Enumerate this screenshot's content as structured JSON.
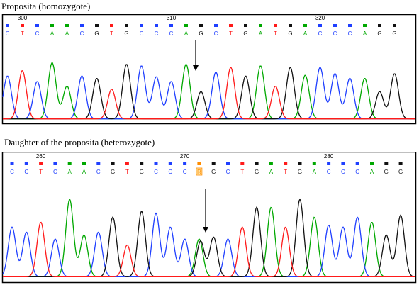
{
  "colors": {
    "A": "#00a800",
    "C": "#1f3fff",
    "G": "#111111",
    "T": "#ff1a1a",
    "R": "#ff8c00",
    "frame": "#000000",
    "arrow": "#000000"
  },
  "panels": [
    {
      "id": "top",
      "label": "Proposita (homozygote)",
      "bases": [
        "C",
        "T",
        "C",
        "A",
        "A",
        "C",
        "G",
        "T",
        "G",
        "C",
        "C",
        "C",
        "A",
        "G",
        "C",
        "T",
        "G",
        "A",
        "T",
        "G",
        "A",
        "C",
        "C",
        "C",
        "A",
        "G",
        "G"
      ],
      "position_labels": [
        {
          "text": "300",
          "base_index": 1
        },
        {
          "text": "310",
          "base_index": 11
        },
        {
          "text": "320",
          "base_index": 21
        }
      ],
      "variant_index": 12,
      "peaks": [
        {
          "base": "C",
          "height": 0.55
        },
        {
          "base": "T",
          "height": 0.62
        },
        {
          "base": "C",
          "height": 0.48
        },
        {
          "base": "A",
          "height": 0.72
        },
        {
          "base": "A",
          "height": 0.42
        },
        {
          "base": "C",
          "height": 0.55
        },
        {
          "base": "G",
          "height": 0.52
        },
        {
          "base": "T",
          "height": 0.38
        },
        {
          "base": "G",
          "height": 0.7
        },
        {
          "base": "C",
          "height": 0.68
        },
        {
          "base": "C",
          "height": 0.54
        },
        {
          "base": "C",
          "height": 0.48
        },
        {
          "base": "A",
          "height": 0.7
        },
        {
          "base": "G",
          "height": 0.35
        },
        {
          "base": "C",
          "height": 0.6
        },
        {
          "base": "T",
          "height": 0.66
        },
        {
          "base": "G",
          "height": 0.55
        },
        {
          "base": "A",
          "height": 0.68
        },
        {
          "base": "T",
          "height": 0.42
        },
        {
          "base": "G",
          "height": 0.66
        },
        {
          "base": "A",
          "height": 0.56
        },
        {
          "base": "C",
          "height": 0.66
        },
        {
          "base": "C",
          "height": 0.58
        },
        {
          "base": "C",
          "height": 0.52
        },
        {
          "base": "A",
          "height": 0.52
        },
        {
          "base": "G",
          "height": 0.35
        },
        {
          "base": "G",
          "height": 0.58
        }
      ]
    },
    {
      "id": "bottom",
      "label": "Daughter of the proposita (heterozygote)",
      "bases": [
        "C",
        "C",
        "T",
        "C",
        "A",
        "A",
        "C",
        "G",
        "T",
        "G",
        "C",
        "C",
        "C",
        "R",
        "G",
        "C",
        "T",
        "G",
        "A",
        "T",
        "G",
        "A",
        "C",
        "C",
        "C",
        "A",
        "G",
        "G"
      ],
      "position_labels": [
        {
          "text": "260",
          "base_index": 2
        },
        {
          "text": "270",
          "base_index": 12
        },
        {
          "text": "280",
          "base_index": 22
        }
      ],
      "variant_index": 13,
      "peaks": [
        {
          "base": "C",
          "height": 0.5
        },
        {
          "base": "C",
          "height": 0.45
        },
        {
          "base": "T",
          "height": 0.55
        },
        {
          "base": "C",
          "height": 0.38
        },
        {
          "base": "A",
          "height": 0.78
        },
        {
          "base": "A",
          "height": 0.42
        },
        {
          "base": "C",
          "height": 0.45
        },
        {
          "base": "G",
          "height": 0.6
        },
        {
          "base": "T",
          "height": 0.32
        },
        {
          "base": "G",
          "height": 0.66
        },
        {
          "base": "C",
          "height": 0.64
        },
        {
          "base": "C",
          "height": 0.5
        },
        {
          "base": "C",
          "height": 0.38
        },
        {
          "base": "A",
          "height": 0.38
        },
        {
          "base": "G",
          "height": 0.4
        },
        {
          "base": "C",
          "height": 0.38
        },
        {
          "base": "T",
          "height": 0.5
        },
        {
          "base": "G",
          "height": 0.7
        },
        {
          "base": "A",
          "height": 0.7
        },
        {
          "base": "T",
          "height": 0.5
        },
        {
          "base": "G",
          "height": 0.78
        },
        {
          "base": "A",
          "height": 0.6
        },
        {
          "base": "C",
          "height": 0.52
        },
        {
          "base": "C",
          "height": 0.5
        },
        {
          "base": "C",
          "height": 0.6
        },
        {
          "base": "A",
          "height": 0.55
        },
        {
          "base": "G",
          "height": 0.42
        },
        {
          "base": "G",
          "height": 0.62
        }
      ],
      "minor_peaks": [
        {
          "after_index": 13,
          "base": "G",
          "height": 0.36
        }
      ]
    }
  ]
}
